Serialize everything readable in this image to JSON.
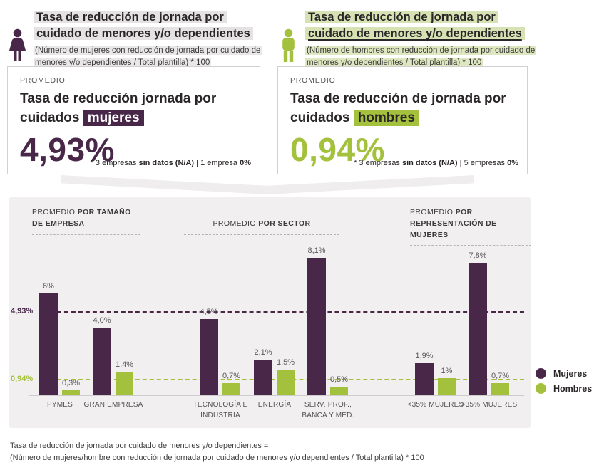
{
  "colors": {
    "purple": "#482749",
    "green": "#a4c13d",
    "gray_highlight": "#e4e2e3",
    "green_highlight": "#d7e2b4",
    "panel_bg": "#f1eff0"
  },
  "header_left": {
    "icon": "woman-icon",
    "title_line1": "Tasa de reducción de jornada por",
    "title_line2": "cuidado de menores y/o dependientes",
    "subtitle": "(Número de mujeres con reducción de jornada por cuidado de menores y/o dependientes / Total plantilla) * 100"
  },
  "header_right": {
    "icon": "man-icon",
    "title_line1": "Tasa de reducción de jornada por",
    "title_line2": "cuidado de menores y/o dependientes",
    "subtitle": "(Número de hombres con reducción de jornada por cuidado de menores y/o dependientes / Total plantilla) * 100"
  },
  "stat_left": {
    "label": "PROMEDIO",
    "title_prefix": "Tasa de reducción jornada por cuidados",
    "title_highlight": "mujeres",
    "value": "4,93%",
    "note_1": "* 3 empresas",
    "note_2": "sin datos (N/A)",
    "note_3": " | 1 empresa ",
    "note_4": "0%"
  },
  "stat_right": {
    "label": "PROMEDIO",
    "title_prefix": "Tasa de reducción de jornada por cuidados",
    "title_highlight": "hombres",
    "value": "0,94%",
    "note_1": "* 3 empresas",
    "note_2": "sin datos (N/A)",
    "note_3": " | 5 empresas ",
    "note_4": "0%"
  },
  "chart_data": {
    "type": "bar",
    "unit": "%",
    "grid": false,
    "ylim": [
      0,
      8.5
    ],
    "legend_position": "right-outside",
    "series": [
      "Mujeres",
      "Hombres"
    ],
    "legend": [
      {
        "label": "Mujeres",
        "color_key": "purple"
      },
      {
        "label": "Hombres",
        "color_key": "green"
      }
    ],
    "avg_lines": [
      {
        "label": "4,93%",
        "value": 4.93,
        "series": "Mujeres",
        "color_key": "purple"
      },
      {
        "label": "0,94%",
        "value": 0.94,
        "series": "Hombres",
        "color_key": "green"
      }
    ],
    "groups": [
      {
        "header_normal": "PROMEDIO",
        "header_bold": "POR TAMAÑO DE EMPRESA",
        "categories": [
          {
            "label": "PYMES",
            "values": [
              6,
              0.3
            ],
            "value_labels": [
              "6%",
              "0,3%"
            ]
          },
          {
            "label": "GRAN EMPRESA",
            "values": [
              4.0,
              1.4
            ],
            "value_labels": [
              "4,0%",
              "1,4%"
            ]
          }
        ]
      },
      {
        "header_normal": "PROMEDIO",
        "header_bold": "POR SECTOR",
        "categories": [
          {
            "label": "TECNOLOGÍA E\nINDUSTRIA",
            "values": [
              4.5,
              0.7
            ],
            "value_labels": [
              "4,5%",
              "0,7%"
            ]
          },
          {
            "label": "ENERGÍA",
            "values": [
              2.1,
              1.5
            ],
            "value_labels": [
              "2,1%",
              "1,5%"
            ]
          },
          {
            "label": "SERV. PROF.,\nBANCA Y MED.",
            "values": [
              8.1,
              0.5
            ],
            "value_labels": [
              "8,1%",
              "0,5%"
            ]
          }
        ]
      },
      {
        "header_normal": "PROMEDIO",
        "header_bold": "POR REPRESENTACIÓN DE MUJERES",
        "categories": [
          {
            "label": "<35% MUJERES",
            "values": [
              1.9,
              1.0
            ],
            "value_labels": [
              "1,9%",
              "1%"
            ]
          },
          {
            "label": ">35% MUJERES",
            "values": [
              7.8,
              0.7
            ],
            "value_labels": [
              "7,8%",
              "0,7%"
            ]
          }
        ]
      }
    ]
  },
  "footer": {
    "line1": "Tasa de reducción de jornada por cuidado de menores y/o dependientes =",
    "line2": "(Número de mujeres/hombre con reducción de jornada por cuidado de menores y/o dependientes / Total plantilla) * 100"
  }
}
